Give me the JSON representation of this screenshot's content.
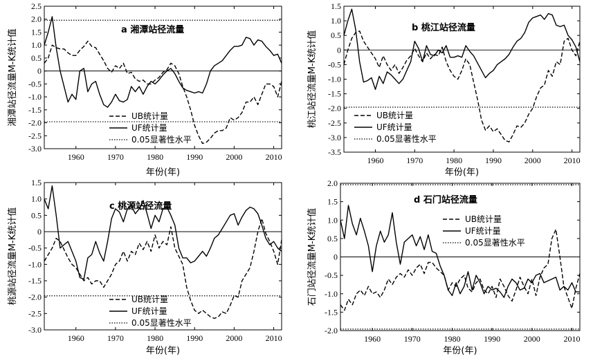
{
  "figure": {
    "xlabel_common": "年份(年)"
  },
  "chart_data": [
    {
      "type": "line",
      "title": "a 湘潭站径流量",
      "ylabel": "湘潭站径流量M-K统计值",
      "xlabel": "年份(年)",
      "xlim": [
        1952,
        2012
      ],
      "ylim": [
        -3,
        2.5
      ],
      "yticks": [
        "2.5",
        "2.0",
        "1.5",
        "1.0",
        "0.5",
        "0",
        "-0.5",
        "-1.0",
        "-1.5",
        "-2.0",
        "-2.5",
        "-3.0"
      ],
      "xticks": [
        "1960",
        "1970",
        "1980",
        "1990",
        "2000",
        "2010"
      ],
      "hlines": [
        1.96,
        0,
        -1.96
      ],
      "legend": [
        "UB统计量",
        "UF统计量",
        "0.05显著性水平"
      ],
      "legend_position": "bottom-left",
      "x": [
        1952,
        1953,
        1954,
        1955,
        1956,
        1957,
        1958,
        1959,
        1960,
        1961,
        1962,
        1963,
        1964,
        1965,
        1966,
        1967,
        1968,
        1969,
        1970,
        1971,
        1972,
        1973,
        1974,
        1975,
        1976,
        1977,
        1978,
        1979,
        1980,
        1981,
        1982,
        1983,
        1984,
        1985,
        1986,
        1987,
        1988,
        1989,
        1990,
        1991,
        1992,
        1993,
        1994,
        1995,
        1996,
        1997,
        1998,
        1999,
        2000,
        2001,
        2002,
        2003,
        2004,
        2005,
        2006,
        2007,
        2008,
        2009,
        2010,
        2011,
        2012
      ],
      "series": [
        {
          "name": "UB统计量",
          "dash": "dash",
          "values": [
            0.3,
            0.5,
            1.0,
            0.9,
            0.85,
            0.85,
            0.7,
            0.6,
            0.6,
            0.8,
            0.95,
            1.15,
            0.95,
            0.9,
            0.65,
            0.4,
            0.1,
            -0.05,
            0.2,
            0.1,
            0.3,
            -0.1,
            -0.05,
            -0.3,
            -0.4,
            -0.35,
            -0.5,
            -0.5,
            -0.35,
            -0.25,
            -0.05,
            0.05,
            0.3,
            0.2,
            -0.1,
            -0.6,
            -1.0,
            -1.5,
            -2.1,
            -2.5,
            -2.8,
            -2.75,
            -2.6,
            -2.4,
            -2.3,
            -2.3,
            -2.2,
            -1.8,
            -1.9,
            -1.8,
            -1.6,
            -1.2,
            -1.2,
            -1.0,
            -1.3,
            -0.9,
            -0.5,
            -0.5,
            -0.6,
            -1.0,
            -0.4
          ]
        },
        {
          "name": "UF统计量",
          "dash": "solid",
          "values": [
            1.0,
            1.5,
            2.1,
            0.9,
            0.0,
            -0.6,
            -1.2,
            -0.9,
            -1.1,
            0.0,
            0.1,
            -0.8,
            -0.5,
            -0.4,
            -0.9,
            -1.3,
            -1.4,
            -1.2,
            -0.9,
            -1.15,
            -1.2,
            -1.1,
            -0.6,
            -0.8,
            -0.6,
            -0.9,
            -0.6,
            -0.4,
            -0.5,
            -0.35,
            -0.15,
            0.0,
            0.1,
            -0.1,
            -0.4,
            -0.65,
            -0.75,
            -0.8,
            -0.85,
            -0.8,
            -0.85,
            -0.5,
            0.0,
            0.2,
            0.3,
            0.4,
            0.6,
            0.8,
            0.95,
            0.95,
            1.0,
            1.3,
            1.25,
            1.0,
            1.2,
            1.15,
            0.95,
            0.8,
            0.6,
            0.65,
            0.3
          ]
        }
      ]
    },
    {
      "type": "line",
      "title": "b 桃江站径流量",
      "ylabel": "桃江站径流量M-K统计值",
      "xlabel": "年份(年)",
      "xlim": [
        1952,
        2012
      ],
      "ylim": [
        -3.5,
        1.5
      ],
      "yticks": [
        "1.5",
        "1.0",
        "0.5",
        "0",
        "-0.5",
        "-1.0",
        "-1.5",
        "-2.0",
        "-2.5",
        "-3.0",
        "-3.5"
      ],
      "xticks": [
        "1960",
        "1970",
        "1980",
        "1990",
        "2000",
        "2010"
      ],
      "hlines": [
        1.96,
        0,
        -1.96
      ],
      "legend": [
        "UB统计量",
        "UF统计量",
        "0.05显著性水平"
      ],
      "legend_position": "bottom-left",
      "x": [
        1952,
        1953,
        1954,
        1955,
        1956,
        1957,
        1958,
        1959,
        1960,
        1961,
        1962,
        1963,
        1964,
        1965,
        1966,
        1967,
        1968,
        1969,
        1970,
        1971,
        1972,
        1973,
        1974,
        1975,
        1976,
        1977,
        1978,
        1979,
        1980,
        1981,
        1982,
        1983,
        1984,
        1985,
        1986,
        1987,
        1988,
        1989,
        1990,
        1991,
        1992,
        1993,
        1994,
        1995,
        1996,
        1997,
        1998,
        1999,
        2000,
        2001,
        2002,
        2003,
        2004,
        2005,
        2006,
        2007,
        2008,
        2009,
        2010,
        2011,
        2012
      ],
      "series": [
        {
          "name": "UB统计量",
          "dash": "dash",
          "values": [
            -0.5,
            0.0,
            0.4,
            0.6,
            0.65,
            0.3,
            0.1,
            -0.1,
            -0.3,
            -0.6,
            -0.2,
            -0.5,
            -0.7,
            -0.5,
            -0.8,
            -0.6,
            -0.35,
            -0.2,
            0.05,
            -0.2,
            -0.4,
            -0.1,
            -0.3,
            -0.15,
            -0.2,
            0.1,
            -0.4,
            -0.7,
            -0.9,
            -1.0,
            -0.7,
            -0.3,
            -0.5,
            -1.1,
            -1.7,
            -2.4,
            -2.75,
            -2.6,
            -2.8,
            -2.7,
            -2.9,
            -3.1,
            -3.15,
            -2.9,
            -2.6,
            -2.65,
            -2.5,
            -2.2,
            -2.0,
            -1.6,
            -1.3,
            -1.2,
            -0.7,
            -0.9,
            -0.4,
            -0.5,
            0.3,
            0.4,
            0.0,
            -0.2,
            0.3
          ]
        },
        {
          "name": "UF统计量",
          "dash": "solid",
          "values": [
            0.5,
            1.0,
            1.4,
            0.7,
            -0.4,
            -1.1,
            -1.05,
            -0.95,
            -1.35,
            -0.9,
            -1.15,
            -0.75,
            -0.85,
            -1.0,
            -1.15,
            -1.0,
            -0.7,
            -0.4,
            0.3,
            0.05,
            -0.4,
            0.15,
            -0.15,
            -0.2,
            0.0,
            -0.1,
            0.15,
            -0.25,
            -0.25,
            -0.2,
            -0.25,
            0.15,
            -0.05,
            -0.2,
            -0.45,
            -0.7,
            -0.95,
            -0.8,
            -0.7,
            -0.5,
            -0.4,
            -0.3,
            -0.15,
            0.1,
            0.3,
            0.4,
            0.6,
            0.95,
            1.1,
            1.15,
            1.2,
            1.05,
            1.25,
            1.2,
            0.85,
            0.8,
            0.85,
            0.5,
            0.35,
            0.1,
            -0.4
          ]
        }
      ]
    },
    {
      "type": "line",
      "title": "c 桃源站径流量",
      "ylabel": "桃源站径流量M-K统计值",
      "xlabel": "年份(年)",
      "xlim": [
        1952,
        2012
      ],
      "ylim": [
        -3,
        1.5
      ],
      "yticks": [
        "1.5",
        "1.0",
        "0.5",
        "0",
        "-0.5",
        "-1.0",
        "-1.5",
        "-2.0",
        "-2.5",
        "-3.0"
      ],
      "xticks": [
        "1960",
        "1970",
        "1980",
        "1990",
        "2000",
        "2010"
      ],
      "hlines": [
        1.96,
        0,
        -1.96
      ],
      "legend": [
        "UB统计量",
        "UF统计量",
        "0.05显著性水平"
      ],
      "legend_position": "bottom-left",
      "x": [
        1952,
        1953,
        1954,
        1955,
        1956,
        1957,
        1958,
        1959,
        1960,
        1961,
        1962,
        1963,
        1964,
        1965,
        1966,
        1967,
        1968,
        1969,
        1970,
        1971,
        1972,
        1973,
        1974,
        1975,
        1976,
        1977,
        1978,
        1979,
        1980,
        1981,
        1982,
        1983,
        1984,
        1985,
        1986,
        1987,
        1988,
        1989,
        1990,
        1991,
        1992,
        1993,
        1994,
        1995,
        1996,
        1997,
        1998,
        1999,
        2000,
        2001,
        2002,
        2003,
        2004,
        2005,
        2006,
        2007,
        2008,
        2009,
        2010,
        2011,
        2012
      ],
      "series": [
        {
          "name": "UB统计量",
          "dash": "dash",
          "values": [
            -0.9,
            -0.7,
            -0.5,
            -0.2,
            -0.3,
            -0.55,
            -0.8,
            -1.0,
            -1.1,
            -1.3,
            -1.5,
            -1.4,
            -1.6,
            -1.5,
            -1.5,
            -1.7,
            -1.5,
            -1.3,
            -1.0,
            -0.9,
            -0.6,
            -0.9,
            -0.6,
            -0.7,
            -0.35,
            -0.55,
            -0.3,
            -0.6,
            -0.1,
            -0.5,
            -0.3,
            -0.4,
            0.15,
            -0.5,
            -0.75,
            -1.0,
            -1.7,
            -2.1,
            -2.4,
            -2.5,
            -2.4,
            -2.5,
            -2.6,
            -2.65,
            -2.6,
            -2.45,
            -2.5,
            -2.25,
            -1.95,
            -2.0,
            -1.5,
            -1.3,
            -1.1,
            -0.6,
            0.0,
            0.4,
            -0.05,
            -0.3,
            -0.6,
            -1.0,
            -0.25
          ]
        },
        {
          "name": "UF统计量",
          "dash": "solid",
          "values": [
            1.0,
            0.7,
            1.4,
            0.5,
            -0.5,
            -0.4,
            -0.3,
            -0.6,
            -0.9,
            -1.4,
            -1.45,
            -0.8,
            -0.7,
            -0.3,
            -0.65,
            -0.9,
            -0.3,
            0.4,
            0.7,
            0.6,
            0.3,
            0.7,
            0.8,
            0.55,
            0.7,
            0.95,
            0.55,
            0.1,
            0.5,
            0.3,
            0.7,
            0.75,
            0.5,
            0.2,
            -0.5,
            -0.8,
            -0.8,
            -0.95,
            -0.9,
            -0.75,
            -0.6,
            -0.75,
            -0.5,
            -0.2,
            -0.1,
            0.1,
            0.3,
            0.5,
            0.55,
            0.2,
            0.45,
            0.65,
            0.75,
            0.7,
            0.55,
            0.2,
            -0.2,
            -0.4,
            -0.3,
            -0.5,
            -0.6
          ]
        }
      ]
    },
    {
      "type": "line",
      "title": "d 石门站径流量",
      "ylabel": "石门站径流量M-K统计值",
      "xlabel": "年份(年)",
      "xlim": [
        1952,
        2012
      ],
      "ylim": [
        -2,
        2
      ],
      "yticks": [
        "2.0",
        "1.5",
        "1.0",
        "0.5",
        "0",
        "-0.5",
        "-1.0",
        "-1.5",
        "-2.0"
      ],
      "xticks": [
        "1960",
        "1970",
        "1980",
        "1990",
        "2000",
        "2010"
      ],
      "hlines": [
        1.96,
        0,
        -1.96
      ],
      "legend": [
        "UB统计量",
        "UF统计量",
        "0.05显著性水平"
      ],
      "legend_position": "top-right",
      "x": [
        1952,
        1953,
        1954,
        1955,
        1956,
        1957,
        1958,
        1959,
        1960,
        1961,
        1962,
        1963,
        1964,
        1965,
        1966,
        1967,
        1968,
        1969,
        1970,
        1971,
        1972,
        1973,
        1974,
        1975,
        1976,
        1977,
        1978,
        1979,
        1980,
        1981,
        1982,
        1983,
        1984,
        1985,
        1986,
        1987,
        1988,
        1989,
        1990,
        1991,
        1992,
        1993,
        1994,
        1995,
        1996,
        1997,
        1998,
        1999,
        2000,
        2001,
        2002,
        2003,
        2004,
        2005,
        2006,
        2007,
        2008,
        2009,
        2010,
        2011,
        2012
      ],
      "series": [
        {
          "name": "UB统计量",
          "dash": "dash",
          "values": [
            -1.3,
            -1.45,
            -1.15,
            -1.3,
            -1.0,
            -0.9,
            -1.05,
            -0.8,
            -1.0,
            -0.95,
            -1.1,
            -0.9,
            -0.6,
            -0.75,
            -0.55,
            -0.45,
            -0.55,
            -0.35,
            -0.5,
            -0.3,
            -0.2,
            -0.45,
            -0.15,
            -0.15,
            -0.3,
            -0.4,
            -0.5,
            -0.9,
            -0.7,
            -0.8,
            -0.6,
            -0.5,
            -0.85,
            -0.95,
            -0.7,
            -0.6,
            -0.9,
            -1.0,
            -0.8,
            -1.1,
            -0.6,
            -0.8,
            -1.05,
            -1.2,
            -0.9,
            -0.55,
            -0.8,
            -1.0,
            -0.6,
            -1.05,
            -0.55,
            -0.3,
            -0.2,
            0.5,
            0.75,
            0.0,
            -0.8,
            -1.1,
            -1.4,
            -0.85,
            -0.45
          ]
        },
        {
          "name": "UF统计量",
          "dash": "solid",
          "values": [
            1.0,
            0.5,
            1.4,
            0.9,
            0.6,
            1.05,
            0.7,
            0.3,
            -0.4,
            0.3,
            0.7,
            0.4,
            0.6,
            1.2,
            0.4,
            -0.2,
            0.4,
            0.5,
            0.6,
            0.3,
            0.55,
            0.2,
            0.6,
            0.15,
            0.1,
            -0.25,
            -0.5,
            -0.9,
            -1.05,
            -0.7,
            -1.0,
            -0.8,
            -0.4,
            -0.9,
            -0.5,
            -0.7,
            -1.0,
            -0.8,
            -0.9,
            -0.85,
            -0.95,
            -1.1,
            -0.8,
            -0.6,
            -0.7,
            -0.9,
            -0.85,
            -0.6,
            -0.7,
            -0.5,
            -0.45,
            -0.7,
            -0.65,
            -0.6,
            -0.55,
            -0.9,
            -0.8,
            -0.9,
            -0.7,
            -0.95,
            -0.95
          ]
        }
      ]
    }
  ]
}
